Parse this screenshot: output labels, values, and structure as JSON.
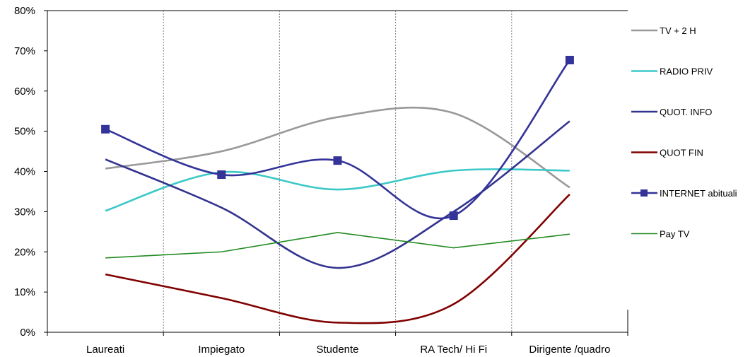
{
  "chart_data": {
    "type": "line",
    "categories": [
      "Laureati",
      "Impiegato",
      "Studente",
      "RA Tech/ Hi Fi",
      "Dirigente /quadro"
    ],
    "ylim": [
      0,
      80
    ],
    "yticks": [
      "0%",
      "10%",
      "20%",
      "30%",
      "40%",
      "50%",
      "60%",
      "70%",
      "80%"
    ],
    "y_unit": "%",
    "grid": "vertical dashed separators between categories",
    "legend_position": "right",
    "smooth": true,
    "series": [
      {
        "name": "TV + 2 H",
        "values": [
          40.7,
          45,
          53.5,
          54.5,
          36
        ],
        "color": "#999999",
        "marker": "none"
      },
      {
        "name": "RADIO PRIV",
        "values": [
          30.2,
          39.8,
          35.5,
          40.2,
          40.2
        ],
        "color": "#3cc8c8",
        "marker": "none"
      },
      {
        "name": "QUOT. INFO",
        "values": [
          43,
          31,
          16,
          30,
          52.5
        ],
        "color": "#33338f",
        "marker": "none"
      },
      {
        "name": "QUOT FIN",
        "values": [
          14.4,
          8.5,
          2.4,
          7,
          34.3
        ],
        "color": "#800000",
        "marker": "none"
      },
      {
        "name": "INTERNET abituali",
        "values": [
          50.5,
          39.2,
          42.7,
          29,
          67.7
        ],
        "color": "#333399",
        "marker": "square"
      },
      {
        "name": "Pay TV",
        "values": [
          18.5,
          20,
          24.8,
          21,
          24.4
        ],
        "color": "#228b22",
        "marker": "none"
      }
    ]
  }
}
